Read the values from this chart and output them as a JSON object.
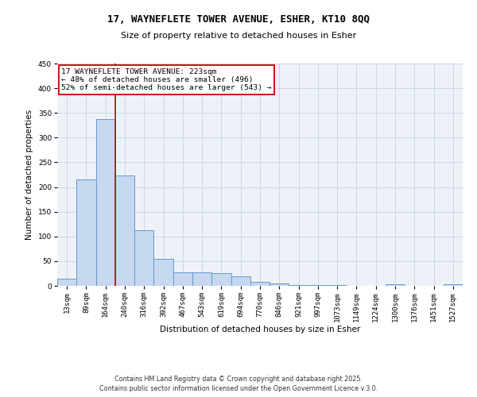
{
  "title_line1": "17, WAYNEFLETE TOWER AVENUE, ESHER, KT10 8QQ",
  "title_line2": "Size of property relative to detached houses in Esher",
  "xlabel": "Distribution of detached houses by size in Esher",
  "ylabel": "Number of detached properties",
  "categories": [
    "13sqm",
    "89sqm",
    "164sqm",
    "240sqm",
    "316sqm",
    "392sqm",
    "467sqm",
    "543sqm",
    "619sqm",
    "694sqm",
    "770sqm",
    "846sqm",
    "921sqm",
    "997sqm",
    "1073sqm",
    "1149sqm",
    "1224sqm",
    "1300sqm",
    "1376sqm",
    "1451sqm",
    "1527sqm"
  ],
  "values": [
    15,
    216,
    338,
    223,
    113,
    54,
    28,
    27,
    25,
    19,
    8,
    5,
    1,
    1,
    1,
    0,
    0,
    3,
    0,
    0,
    3
  ],
  "bar_color": "#c5d8ef",
  "bar_edge_color": "#6699cc",
  "vline_x": 2.5,
  "vline_color": "#cc0000",
  "annotation_text": "17 WAYNEFLETE TOWER AVENUE: 223sqm\n← 48% of detached houses are smaller (496)\n52% of semi-detached houses are larger (543) →",
  "annotation_box_color": "#ffffff",
  "annotation_box_edge": "#cc0000",
  "ylim": [
    0,
    450
  ],
  "yticks": [
    0,
    50,
    100,
    150,
    200,
    250,
    300,
    350,
    400,
    450
  ],
  "grid_color": "#c8d8e8",
  "bg_color": "#eef2f8",
  "footer_line1": "Contains HM Land Registry data © Crown copyright and database right 2025.",
  "footer_line2": "Contains public sector information licensed under the Open Government Licence v.3.0.",
  "title_fontsize": 9,
  "subtitle_fontsize": 8,
  "axis_label_fontsize": 7.5,
  "tick_fontsize": 6.5,
  "annotation_fontsize": 6.8,
  "footer_fontsize": 5.8
}
